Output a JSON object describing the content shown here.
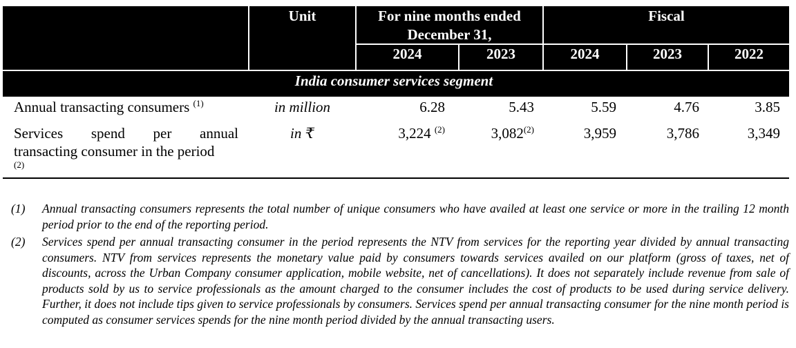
{
  "header": {
    "unit": "Unit",
    "nine_months_line1": "For nine months ended",
    "nine_months_line2": "December 31,",
    "fiscal": "Fiscal",
    "years": [
      "2024",
      "2023",
      "2024",
      "2023",
      "2022"
    ]
  },
  "segment_title": "India consumer services segment",
  "rows": [
    {
      "label": "Annual transacting consumers",
      "label_note": "(1)",
      "unit": "in million",
      "values": [
        "6.28",
        "5.43",
        "5.59",
        "4.76",
        "3.85"
      ],
      "value_notes": [
        "",
        "",
        "",
        "",
        ""
      ]
    },
    {
      "label_words": [
        "Services",
        "spend",
        "per",
        "annual"
      ],
      "label_line2": "transacting consumer in the period",
      "label_note": "(2)",
      "unit": "in ₹",
      "values": [
        "3,224",
        "3,082",
        "3,959",
        "3,786",
        "3,349"
      ],
      "value_notes": [
        "(2)",
        "(2)",
        "",
        "",
        ""
      ]
    }
  ],
  "footnotes": [
    {
      "marker": "(1)",
      "text": "Annual transacting consumers represents the total number of unique consumers who have availed at least one service or more in the trailing 12 month period prior to the end of the reporting period."
    },
    {
      "marker": "(2)",
      "text": "Services spend per annual transacting consumer in the period represents the NTV from services for the reporting year divided by annual transacting consumers. NTV from services represents the monetary value paid by consumers towards services availed on our platform (gross of taxes, net of discounts, across the Urban Company consumer application, mobile website, net of cancellations). It does not separately include revenue from sale of products sold by us to service professionals as the amount charged to the consumer includes the cost of products to be used during service delivery. Further, it does not include tips given to service professionals by consumers. Services spend per annual transacting consumer for the nine month period is computed as consumer services spends for the nine month period divided by the annual transacting users."
    }
  ]
}
